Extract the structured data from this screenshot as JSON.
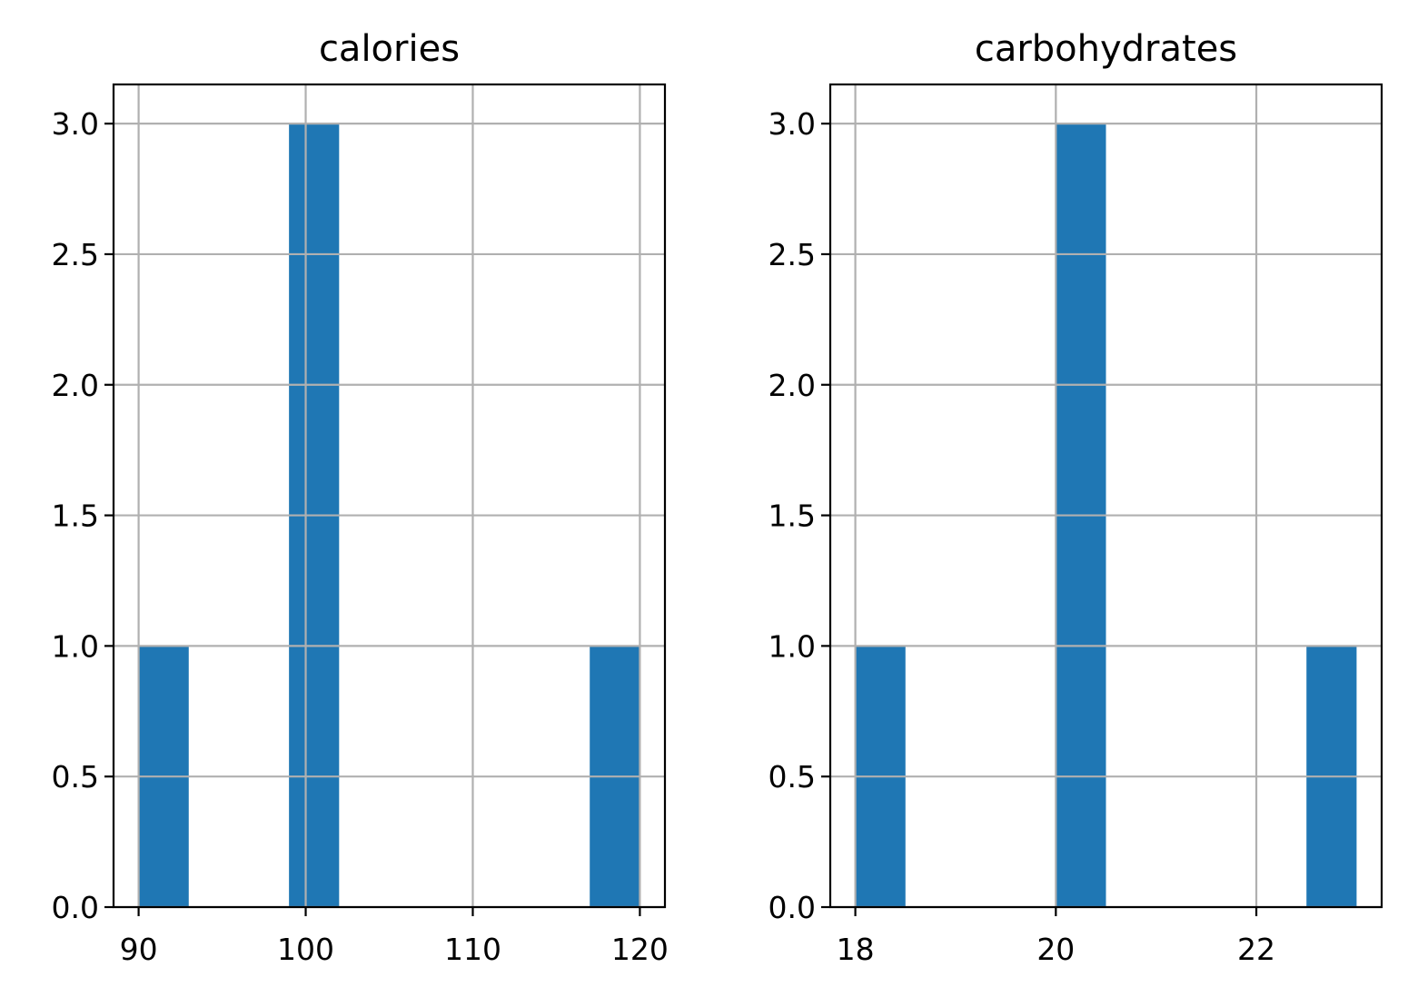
{
  "chart_data": [
    {
      "type": "bar",
      "title": "calories",
      "xlabel": "",
      "ylabel": "",
      "bin_edges": [
        90,
        93,
        96,
        99,
        102,
        105,
        108,
        111,
        114,
        117,
        120
      ],
      "counts": [
        1,
        0,
        0,
        3,
        0,
        0,
        0,
        0,
        0,
        1
      ],
      "xlim": [
        88.5,
        121.5
      ],
      "ylim": [
        0,
        3.15
      ],
      "xticks": [
        90,
        100,
        110,
        120
      ],
      "xtick_labels": [
        "90",
        "100",
        "110",
        "120"
      ],
      "yticks": [
        0,
        0.5,
        1,
        1.5,
        2,
        2.5,
        3
      ],
      "ytick_labels": [
        "0.0",
        "0.5",
        "1.0",
        "1.5",
        "2.0",
        "2.5",
        "3.0"
      ],
      "grid": true,
      "color": "#1f77b4"
    },
    {
      "type": "bar",
      "title": "carbohydrates",
      "xlabel": "",
      "ylabel": "",
      "bin_edges": [
        18,
        18.5,
        19,
        19.5,
        20,
        20.5,
        21,
        21.5,
        22,
        22.5,
        23
      ],
      "counts": [
        1,
        0,
        0,
        0,
        3,
        0,
        0,
        0,
        0,
        1
      ],
      "xlim": [
        17.75,
        23.25
      ],
      "ylim": [
        0,
        3.15
      ],
      "xticks": [
        18,
        20,
        22
      ],
      "xtick_labels": [
        "18",
        "20",
        "22"
      ],
      "yticks": [
        0,
        0.5,
        1,
        1.5,
        2,
        2.5,
        3
      ],
      "ytick_labels": [
        "0.0",
        "0.5",
        "1.0",
        "1.5",
        "2.0",
        "2.5",
        "3.0"
      ],
      "grid": true,
      "color": "#1f77b4"
    }
  ]
}
